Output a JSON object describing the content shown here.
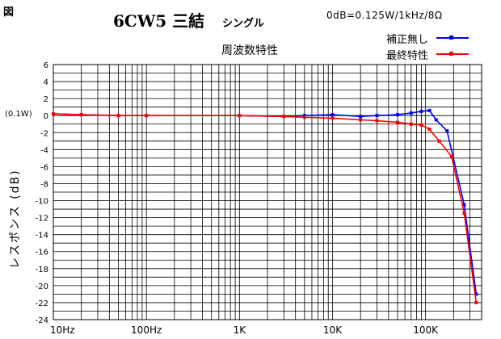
{
  "header": {
    "fig_label": "図",
    "title_main": "6CW5 三結",
    "title_sub": "シングル",
    "condition": "0dB=0.125W/1kHz/8Ω",
    "subtitle": "周波数特性"
  },
  "chart_data": {
    "type": "line",
    "x_scale": "log",
    "xlim": [
      10,
      400000
    ],
    "ylim": [
      -24,
      6
    ],
    "x_ticks": [
      {
        "value": 10,
        "label": "10Hz"
      },
      {
        "value": 100,
        "label": "100Hz"
      },
      {
        "value": 1000,
        "label": "1K"
      },
      {
        "value": 10000,
        "label": "10K"
      },
      {
        "value": 100000,
        "label": "100K"
      }
    ],
    "y_ticks": [
      6,
      4,
      2,
      0,
      -2,
      -4,
      -6,
      -8,
      -10,
      -12,
      -14,
      -16,
      -18,
      -20,
      -22,
      -24
    ],
    "ylabel": "レスポンス (dB)",
    "ref_label": "(0.1W)",
    "grid": true,
    "legend_position": "top-right",
    "series": [
      {
        "name": "補正無し",
        "color": "#0000ff",
        "points": [
          [
            10,
            0.2
          ],
          [
            20,
            0.1
          ],
          [
            50,
            0
          ],
          [
            100,
            0
          ],
          [
            1000,
            0
          ],
          [
            3000,
            -0.1
          ],
          [
            5000,
            0
          ],
          [
            10000,
            0.1
          ],
          [
            20000,
            -0.1
          ],
          [
            30000,
            0
          ],
          [
            50000,
            0.1
          ],
          [
            70000,
            0.3
          ],
          [
            90000,
            0.5
          ],
          [
            110000,
            0.6
          ],
          [
            130000,
            -0.5
          ],
          [
            170000,
            -1.8
          ],
          [
            260000,
            -10.5
          ],
          [
            350000,
            -21
          ]
        ]
      },
      {
        "name": "最終特性",
        "color": "#ff0000",
        "points": [
          [
            10,
            0.2
          ],
          [
            20,
            0.1
          ],
          [
            50,
            0
          ],
          [
            100,
            0
          ],
          [
            1000,
            0
          ],
          [
            3000,
            -0.1
          ],
          [
            5000,
            -0.2
          ],
          [
            10000,
            -0.3
          ],
          [
            20000,
            -0.5
          ],
          [
            30000,
            -0.6
          ],
          [
            50000,
            -0.8
          ],
          [
            70000,
            -1
          ],
          [
            90000,
            -1.1
          ],
          [
            110000,
            -1.6
          ],
          [
            140000,
            -3
          ],
          [
            190000,
            -4.8
          ],
          [
            260000,
            -11.5
          ],
          [
            350000,
            -22
          ]
        ]
      }
    ]
  }
}
